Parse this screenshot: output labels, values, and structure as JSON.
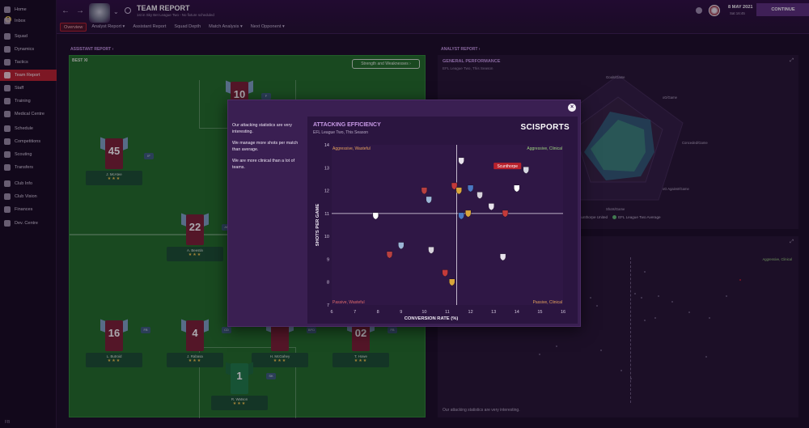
{
  "sidebar": {
    "inbox_badge": "6",
    "items": [
      {
        "label": "Home",
        "icon": "home-icon"
      },
      {
        "label": "Inbox",
        "icon": "inbox-icon"
      },
      {
        "label": "Squad",
        "icon": "squad-icon"
      },
      {
        "label": "Dynamics",
        "icon": "dynamics-icon"
      },
      {
        "label": "Tactics",
        "icon": "tactics-icon"
      },
      {
        "label": "Team Report",
        "icon": "report-icon",
        "active": true
      },
      {
        "label": "Staff",
        "icon": "staff-icon"
      },
      {
        "label": "Training",
        "icon": "training-icon"
      },
      {
        "label": "Medical Centre",
        "icon": "medical-icon"
      },
      {
        "label": "Schedule",
        "icon": "schedule-icon"
      },
      {
        "label": "Competitions",
        "icon": "trophy-icon"
      },
      {
        "label": "Scouting",
        "icon": "scouting-icon"
      },
      {
        "label": "Transfers",
        "icon": "transfers-icon"
      },
      {
        "label": "Club Info",
        "icon": "club-info-icon"
      },
      {
        "label": "Club Vision",
        "icon": "vision-icon"
      },
      {
        "label": "Finances",
        "icon": "finances-icon"
      },
      {
        "label": "Dev. Centre",
        "icon": "dev-centre-icon"
      }
    ],
    "footer": "FB"
  },
  "header": {
    "title": "TEAM REPORT",
    "subtitle": "1st in Sky Bet League Two - No fixture scheduled",
    "tabs": [
      "Overview",
      "Analyst Report",
      "Assistant Report",
      "Squad Depth",
      "Match Analysis",
      "Next Opponent"
    ],
    "date": "8 MAY 2021",
    "time": "Sat 16:45",
    "continue_label": "CONTINUE"
  },
  "left": {
    "section_label": "ASSISTANT REPORT",
    "panel_title": "BEST XI",
    "switch_label": "Strength and Weaknesses",
    "players": [
      {
        "number": "10",
        "name": "",
        "pos": "F",
        "stars": ""
      },
      {
        "number": "45",
        "name": "J. McAtee",
        "pos": "IF",
        "stars": "★★★"
      },
      {
        "number": "22",
        "name": "A. Beestin",
        "pos": "AP",
        "stars": "★★★"
      },
      {
        "number": "16",
        "name": "L. Butroid",
        "pos": "FB",
        "stars": "★★★"
      },
      {
        "number": "4",
        "name": "J. Rabasa",
        "pos": "CD",
        "stars": "★★★"
      },
      {
        "number": "",
        "name": "H. McGahey",
        "pos": "BPD",
        "stars": "★★★"
      },
      {
        "number": "02",
        "name": "T. Howe",
        "pos": "FB",
        "stars": "★★★"
      },
      {
        "number": "1",
        "name": "R. Watson",
        "pos": "SK",
        "stars": "★★★"
      }
    ]
  },
  "right": {
    "section_label": "ANALYST REPORT",
    "title": "GENERAL PERFORMANCE",
    "subtitle": "EFL League Two, This Season",
    "axes": [
      "Goals/Game",
      "xG/Game",
      "Conceded/Game",
      "xG Against/Game",
      "Shots/Game"
    ],
    "legend_team": "Scunthorpe United",
    "legend_avg": "EFL League Two Average",
    "footer_text": "Our attacking statistics are very interesting.",
    "quadrant_tr": "Aggressive, Clinical"
  },
  "modal": {
    "summary": [
      "Our attacking statistics are very interesting.",
      "We manage more shots per match than average.",
      "We are more clinical than a lot of teams."
    ],
    "title": "ATTACKING EFFICIENCY",
    "subtitle": "EFL League Two, This Season",
    "brand": "SCISPORTS",
    "highlight_label": "Scunthorpe"
  },
  "chart_data": {
    "type": "scatter",
    "title": "ATTACKING EFFICIENCY",
    "xlabel": "CONVERSION RATE (%)",
    "ylabel": "SHOTS PER GAME",
    "xlim": [
      6,
      16
    ],
    "ylim": [
      7,
      14
    ],
    "x_ticks": [
      6,
      7,
      8,
      9,
      10,
      11,
      12,
      13,
      14,
      15,
      16
    ],
    "y_ticks": [
      7,
      8,
      9,
      10,
      11,
      12,
      13,
      14
    ],
    "reference_x": 11.4,
    "reference_y": 11.0,
    "quadrants": {
      "top_left": "Aggressive, Wasteful",
      "top_right": "Aggressive, Clinical",
      "bottom_left": "Passive, Wasteful",
      "bottom_right": "Passive, Clinical"
    },
    "points": [
      {
        "x": 14.4,
        "y": 12.9,
        "team": "Scunthorpe",
        "highlight": true
      },
      {
        "x": 11.6,
        "y": 13.3
      },
      {
        "x": 11.3,
        "y": 12.2
      },
      {
        "x": 11.5,
        "y": 12.0
      },
      {
        "x": 12.0,
        "y": 12.1
      },
      {
        "x": 14.0,
        "y": 12.1
      },
      {
        "x": 10.0,
        "y": 12.0
      },
      {
        "x": 10.2,
        "y": 11.6
      },
      {
        "x": 12.4,
        "y": 11.8
      },
      {
        "x": 12.9,
        "y": 11.3
      },
      {
        "x": 13.5,
        "y": 11.0
      },
      {
        "x": 11.9,
        "y": 11.0
      },
      {
        "x": 11.6,
        "y": 10.9
      },
      {
        "x": 7.9,
        "y": 10.9
      },
      {
        "x": 8.5,
        "y": 9.2
      },
      {
        "x": 9.0,
        "y": 9.6
      },
      {
        "x": 10.3,
        "y": 9.4
      },
      {
        "x": 13.4,
        "y": 9.1
      },
      {
        "x": 10.9,
        "y": 8.4
      },
      {
        "x": 11.2,
        "y": 8.0
      }
    ]
  },
  "colors": {
    "accent": "#b8212c",
    "purple": "#c89ae6",
    "highlight": "#b8212c"
  }
}
